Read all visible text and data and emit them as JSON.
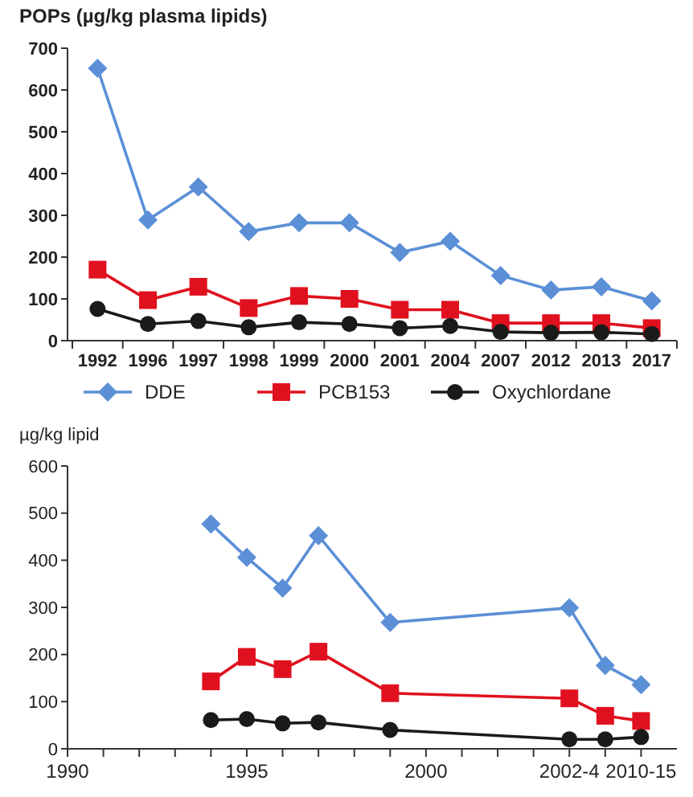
{
  "chart_data": [
    {
      "type": "line",
      "ylabel": "POPs (µg/kg plasma lipids)",
      "categories": [
        "1992",
        "1996",
        "1997",
        "1998",
        "1999",
        "2000",
        "2001",
        "2004",
        "2007",
        "2012",
        "2013",
        "2017"
      ],
      "ylim": [
        0,
        700
      ],
      "yticks": [
        0,
        100,
        200,
        300,
        400,
        500,
        600,
        700
      ],
      "grid": false,
      "legend": "bottom",
      "series": [
        {
          "name": "DDE",
          "color": "#5b8fd6",
          "marker": "diamond",
          "values": [
            652,
            289,
            368,
            261,
            282,
            282,
            211,
            238,
            156,
            121,
            129,
            95
          ]
        },
        {
          "name": "PCB153",
          "color": "#e0101e",
          "marker": "square",
          "values": [
            170,
            97,
            129,
            78,
            107,
            100,
            74,
            74,
            42,
            42,
            42,
            30
          ]
        },
        {
          "name": "Oxychlordane",
          "color": "#1a1a1a",
          "marker": "circle",
          "values": [
            76,
            40,
            47,
            32,
            44,
            40,
            30,
            35,
            21,
            19,
            20,
            16
          ]
        }
      ]
    },
    {
      "type": "line",
      "ylabel": "µg/kg lipid",
      "x": [
        1994,
        1995,
        1996,
        1997,
        1999,
        2004,
        2005,
        2006
      ],
      "xlim": [
        1990,
        2007
      ],
      "xticks": [
        1990,
        {
          "value": 1991,
          "label": null
        },
        {
          "value": 1992,
          "label": null
        },
        {
          "value": 1993,
          "label": null
        },
        {
          "value": 1994,
          "label": null
        },
        1995,
        {
          "value": 1996,
          "label": null
        },
        {
          "value": 1997,
          "label": null
        },
        {
          "value": 1998,
          "label": null
        },
        {
          "value": 1999,
          "label": null
        },
        2000,
        {
          "value": 2001,
          "label": null
        },
        {
          "value": 2002,
          "label": null
        },
        {
          "value": 2003,
          "label": null
        },
        {
          "value": 2004,
          "label": "2002-4"
        },
        {
          "value": 2005,
          "label": null
        },
        {
          "value": 2006,
          "label": "2010-15"
        }
      ],
      "ylim": [
        0,
        600
      ],
      "yticks": [
        0,
        100,
        200,
        300,
        400,
        500,
        600
      ],
      "grid": false,
      "series": [
        {
          "color": "#5b8fd6",
          "marker": "diamond",
          "values": [
            477,
            406,
            341,
            452,
            268,
            299,
            177,
            136
          ]
        },
        {
          "color": "#e0101e",
          "marker": "square",
          "values": [
            143,
            195,
            169,
            206,
            118,
            107,
            70,
            59
          ]
        },
        {
          "color": "#1a1a1a",
          "marker": "circle",
          "values": [
            61,
            63,
            54,
            56,
            40,
            20,
            20,
            25
          ]
        }
      ]
    }
  ]
}
